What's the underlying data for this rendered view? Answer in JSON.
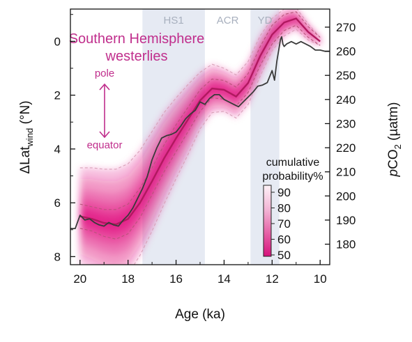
{
  "chart_data": {
    "type": "line",
    "x_axis": {
      "label": "Age (ka)",
      "range": [
        20.4,
        9.6
      ],
      "ticks": [
        20,
        18,
        16,
        14,
        12,
        10
      ],
      "reversed": true
    },
    "y_left": {
      "label": "ΔLat",
      "label_sub": "wind",
      "label_unit": " (°N)",
      "range": [
        8.3,
        -1.2
      ],
      "ticks": [
        0,
        2,
        4,
        6,
        8
      ],
      "reversed": true
    },
    "y_right": {
      "label_prefix": "p",
      "label_main": "CO",
      "label_sub": "2",
      "label_unit": " (µatm)",
      "range": [
        171.5,
        277.5
      ],
      "ticks": [
        180,
        190,
        200,
        210,
        220,
        230,
        240,
        250,
        260,
        270
      ]
    },
    "periods": [
      {
        "name": "HS1",
        "start": 17.4,
        "end": 14.8,
        "shaded": true
      },
      {
        "name": "ACR",
        "start": 14.8,
        "end": 12.9,
        "shaded": false
      },
      {
        "name": "YD",
        "start": 12.9,
        "end": 11.7,
        "shaded": true
      }
    ],
    "title": "Southern Hemisphere",
    "subtitle": "westerlies",
    "direction_labels": {
      "top": "pole",
      "bottom": "equator"
    },
    "legend": {
      "title_line1": "cumulative",
      "title_line2": "probability%",
      "ticks": [
        90,
        80,
        70,
        60,
        50
      ]
    },
    "series": [
      {
        "name": "ΔLatwind",
        "axis": "left",
        "x": [
          20.0,
          19.5,
          19.0,
          18.5,
          18.0,
          17.5,
          17.0,
          16.5,
          16.0,
          15.5,
          15.0,
          14.5,
          14.0,
          13.5,
          13.0,
          12.5,
          12.0,
          11.5,
          11.0,
          10.5,
          10.0
        ],
        "median": [
          6.5,
          6.6,
          6.75,
          6.8,
          6.6,
          6.0,
          5.2,
          4.35,
          3.6,
          2.9,
          2.2,
          1.75,
          1.8,
          2.05,
          1.55,
          0.55,
          -0.25,
          -0.7,
          -0.85,
          -0.35,
          0.0
        ],
        "band_inner": [
          0.45,
          0.45,
          0.5,
          0.55,
          0.55,
          0.55,
          0.5,
          0.5,
          0.5,
          0.45,
          0.4,
          0.35,
          0.35,
          0.35,
          0.35,
          0.35,
          0.35,
          0.3,
          0.25,
          0.2,
          0.15
        ],
        "band_outer": [
          1.8,
          1.9,
          2.0,
          2.05,
          2.05,
          1.95,
          1.85,
          1.7,
          1.5,
          1.3,
          1.05,
          0.9,
          0.8,
          0.8,
          0.8,
          0.75,
          0.6,
          0.5,
          0.4,
          0.3,
          0.15
        ]
      },
      {
        "name": "pCO2",
        "axis": "right",
        "x": [
          20.4,
          20.2,
          20.0,
          19.8,
          19.6,
          19.4,
          19.2,
          19.0,
          18.8,
          18.6,
          18.4,
          18.2,
          18.0,
          17.8,
          17.6,
          17.4,
          17.2,
          17.0,
          16.8,
          16.6,
          16.4,
          16.2,
          16.0,
          15.8,
          15.6,
          15.4,
          15.2,
          15.0,
          14.8,
          14.6,
          14.4,
          14.2,
          14.0,
          13.8,
          13.6,
          13.4,
          13.2,
          13.0,
          12.8,
          12.6,
          12.4,
          12.2,
          12.0,
          11.9,
          11.8,
          11.7,
          11.65,
          11.6,
          11.55,
          11.5,
          11.4,
          11.2,
          11.0,
          10.8,
          10.6,
          10.4,
          10.2,
          10.0,
          9.8,
          9.6
        ],
        "values": [
          186.5,
          186.5,
          192,
          190,
          190.5,
          189,
          188,
          187.5,
          189,
          188,
          187.5,
          190,
          192,
          195,
          199,
          203,
          208,
          215,
          220,
          224,
          225,
          225.5,
          226.5,
          229,
          232,
          234,
          235.5,
          239,
          238,
          240.5,
          242,
          242,
          240,
          239,
          238,
          237,
          239,
          241,
          243,
          245.5,
          246,
          247,
          252,
          248,
          256,
          262,
          265,
          266,
          263,
          262,
          263,
          264,
          263,
          264,
          263,
          262,
          260.5,
          260.5,
          260,
          260
        ]
      }
    ]
  }
}
